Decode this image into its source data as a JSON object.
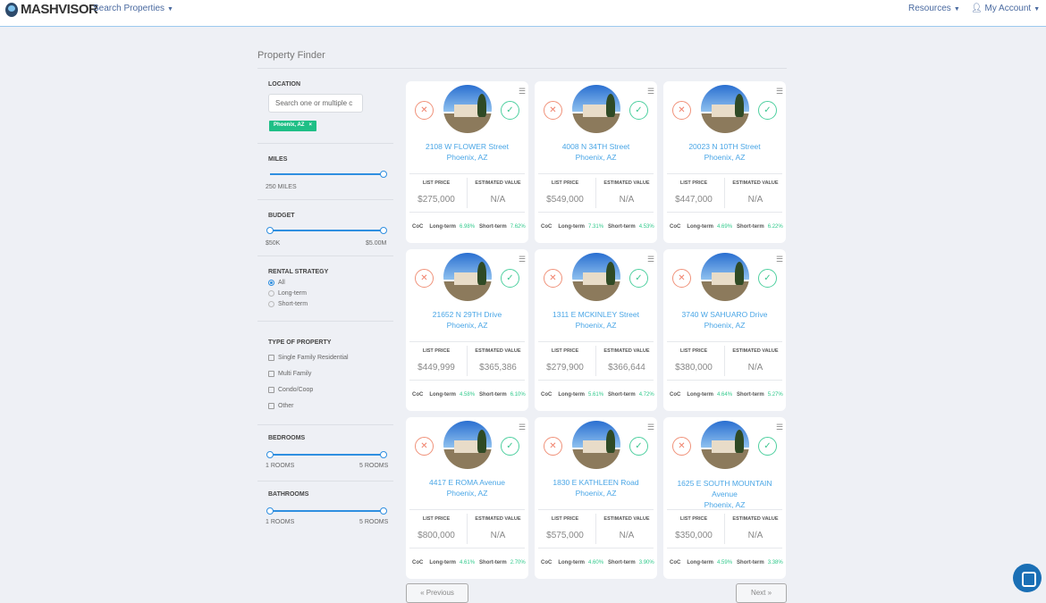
{
  "header": {
    "logo": "MASHVISOR",
    "search_properties": "Search Properties",
    "resources": "Resources",
    "my_account": "My Account"
  },
  "page_title": "Property Finder",
  "filters": {
    "location": {
      "label": "LOCATION",
      "placeholder": "Search one or multiple c",
      "chip": "Phoenix, AZ"
    },
    "miles": {
      "label": "MILES",
      "value": "250 MILES",
      "fraction": 1.0
    },
    "budget": {
      "label": "BUDGET",
      "min": "$50K",
      "max": "$5.00M"
    },
    "rental_strategy": {
      "label": "RENTAL STRATEGY",
      "options": [
        "All",
        "Long-term",
        "Short-term"
      ],
      "selected": "All"
    },
    "type": {
      "label": "TYPE OF PROPERTY",
      "options": [
        "Single Family Residential",
        "Multi Family",
        "Condo/Coop",
        "Other"
      ]
    },
    "bedrooms": {
      "label": "BEDROOMS",
      "min": "1 ROOMS",
      "max": "5 ROOMS"
    },
    "bathrooms": {
      "label": "BATHROOMS",
      "min": "1 ROOMS",
      "max": "5 ROOMS"
    }
  },
  "card_labels": {
    "list_price": "LIST PRICE",
    "estimated_value": "ESTIMATED VALUE",
    "coc": "CoC",
    "long_term": "Long-term",
    "short_term": "Short-term"
  },
  "properties": [
    {
      "street": "2108 W FLOWER Street",
      "city": "Phoenix, AZ",
      "list_price": "$275,000",
      "estimated_value": "N/A",
      "long": "6.98%",
      "short": "7.62%"
    },
    {
      "street": "4008 N 34TH Street",
      "city": "Phoenix, AZ",
      "list_price": "$549,000",
      "estimated_value": "N/A",
      "long": "7.31%",
      "short": "4.53%"
    },
    {
      "street": "20023 N 10TH Street",
      "city": "Phoenix, AZ",
      "list_price": "$447,000",
      "estimated_value": "N/A",
      "long": "4.69%",
      "short": "6.22%"
    },
    {
      "street": "21652 N 29TH Drive",
      "city": "Phoenix, AZ",
      "list_price": "$449,999",
      "estimated_value": "$365,386",
      "long": "4.58%",
      "short": "6.10%"
    },
    {
      "street": "1311 E MCKINLEY Street",
      "city": "Phoenix, AZ",
      "list_price": "$279,900",
      "estimated_value": "$366,644",
      "long": "5.61%",
      "short": "4.72%"
    },
    {
      "street": "3740 W SAHUARO Drive",
      "city": "Phoenix, AZ",
      "list_price": "$380,000",
      "estimated_value": "N/A",
      "long": "4.64%",
      "short": "5.27%"
    },
    {
      "street": "4417 E ROMA Avenue",
      "city": "Phoenix, AZ",
      "list_price": "$800,000",
      "estimated_value": "N/A",
      "long": "4.61%",
      "short": "2.70%"
    },
    {
      "street": "1830 E KATHLEEN Road",
      "city": "Phoenix, AZ",
      "list_price": "$575,000",
      "estimated_value": "N/A",
      "long": "4.60%",
      "short": "3.90%"
    },
    {
      "street": "1625 E SOUTH MOUNTAIN Avenue",
      "city": "Phoenix, AZ",
      "list_price": "$350,000",
      "estimated_value": "N/A",
      "long": "4.59%",
      "short": "3.38%"
    }
  ],
  "pagination": {
    "previous": "« Previous",
    "next": "Next »"
  },
  "colors": {
    "accent": "#4aa6e6",
    "positive": "#2fc98b",
    "reject": "#f0806a",
    "chip": "#1fbf86"
  }
}
